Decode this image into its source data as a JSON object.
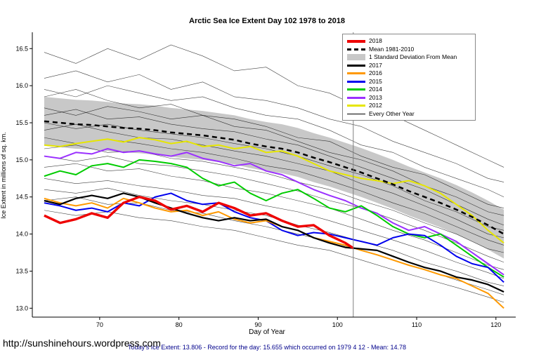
{
  "page": {
    "footer_url": "http://sunshinehours.wordpress.com",
    "caption": "Today's Ice Extent: 13.806  - Record for the day: 15.655 which occurred on 1979 4 12   - Mean: 14.78"
  },
  "legend": {
    "items": [
      {
        "label": "2018",
        "kind": "line",
        "color": "#EE0000",
        "weight": 4
      },
      {
        "label": "Mean 1981-2010",
        "kind": "dashed",
        "color": "#000000",
        "weight": 3
      },
      {
        "label": "1 Standard Deviation From Mean",
        "kind": "band",
        "color": "#C8C8C8"
      },
      {
        "label": "2017",
        "kind": "line",
        "color": "#000000",
        "weight": 3
      },
      {
        "label": "2016",
        "kind": "line",
        "color": "#FF9900",
        "weight": 3
      },
      {
        "label": "2015",
        "kind": "line",
        "color": "#0000EE",
        "weight": 3
      },
      {
        "label": "2014",
        "kind": "line",
        "color": "#00CC00",
        "weight": 3
      },
      {
        "label": "2013",
        "kind": "line",
        "color": "#9B30FF",
        "weight": 3
      },
      {
        "label": "2012",
        "kind": "line",
        "color": "#E6E600",
        "weight": 3
      },
      {
        "label": "Every Other Year",
        "kind": "line",
        "color": "#000000",
        "weight": 1
      }
    ]
  },
  "chart_data": {
    "type": "line",
    "title": "Arctic Sea Ice Extent Day 102 1978 to 2018",
    "xlabel": "Day of Year",
    "ylabel": "Ice Extent in millions of sq. km.",
    "xlim": [
      61.5,
      122.5
    ],
    "ylim": [
      12.88,
      16.72
    ],
    "x_ticks": [
      70,
      80,
      90,
      100,
      110,
      120
    ],
    "y_ticks": [
      13.0,
      13.5,
      14.0,
      14.5,
      15.0,
      15.5,
      16.0,
      16.5
    ],
    "ref_line_x": 102,
    "std_dev": 0.33,
    "band_color": "#C8C8C8",
    "x": [
      63,
      65,
      67,
      69,
      71,
      73,
      75,
      77,
      79,
      81,
      83,
      85,
      87,
      89,
      91,
      93,
      95,
      97,
      99,
      101,
      103,
      105,
      107,
      109,
      111,
      113,
      115,
      117,
      119,
      121
    ],
    "series": [
      {
        "name": "2012",
        "color": "#E6E600",
        "width": 2,
        "values": [
          15.2,
          15.18,
          15.22,
          15.25,
          15.28,
          15.24,
          15.3,
          15.27,
          15.22,
          15.25,
          15.18,
          15.2,
          15.15,
          15.18,
          15.1,
          15.12,
          15.05,
          14.95,
          14.85,
          14.8,
          14.75,
          14.72,
          14.68,
          14.72,
          14.65,
          14.55,
          14.4,
          14.25,
          14.05,
          13.88
        ]
      },
      {
        "name": "2013",
        "color": "#9B30FF",
        "width": 2,
        "values": [
          15.05,
          15.02,
          15.1,
          15.08,
          15.15,
          15.1,
          15.12,
          15.08,
          15.05,
          15.1,
          15.02,
          14.98,
          14.92,
          14.95,
          14.85,
          14.8,
          14.7,
          14.6,
          14.52,
          14.45,
          14.35,
          14.28,
          14.15,
          14.05,
          14.1,
          14.0,
          13.9,
          13.75,
          13.6,
          13.45
        ]
      },
      {
        "name": "2014",
        "color": "#00CC00",
        "width": 2,
        "values": [
          14.78,
          14.85,
          14.8,
          14.92,
          14.95,
          14.9,
          15.0,
          14.98,
          14.95,
          14.9,
          14.75,
          14.65,
          14.7,
          14.55,
          14.45,
          14.55,
          14.6,
          14.48,
          14.35,
          14.3,
          14.38,
          14.25,
          14.1,
          14.0,
          13.95,
          14.0,
          13.85,
          13.7,
          13.55,
          13.42
        ]
      },
      {
        "name": "2015",
        "color": "#0000EE",
        "width": 2,
        "values": [
          14.42,
          14.38,
          14.32,
          14.35,
          14.3,
          14.42,
          14.38,
          14.5,
          14.55,
          14.45,
          14.4,
          14.42,
          14.3,
          14.22,
          14.18,
          14.05,
          13.98,
          14.02,
          14.0,
          13.95,
          13.9,
          13.85,
          13.95,
          14.0,
          13.98,
          13.85,
          13.7,
          13.6,
          13.55,
          13.35
        ]
      },
      {
        "name": "2016",
        "color": "#FF9900",
        "width": 2,
        "values": [
          14.48,
          14.42,
          14.38,
          14.42,
          14.35,
          14.48,
          14.42,
          14.35,
          14.3,
          14.32,
          14.25,
          14.3,
          14.2,
          14.15,
          14.18,
          14.1,
          14.05,
          13.95,
          13.9,
          13.85,
          13.78,
          13.72,
          13.65,
          13.58,
          13.52,
          13.45,
          13.4,
          13.3,
          13.2,
          13.0
        ]
      },
      {
        "name": "2017",
        "color": "#000000",
        "width": 2.2,
        "values": [
          14.45,
          14.4,
          14.48,
          14.52,
          14.48,
          14.55,
          14.5,
          14.42,
          14.35,
          14.28,
          14.22,
          14.18,
          14.22,
          14.18,
          14.2,
          14.1,
          14.05,
          13.95,
          13.88,
          13.82,
          13.8,
          13.78,
          13.7,
          13.62,
          13.55,
          13.5,
          13.42,
          13.38,
          13.32,
          13.22
        ]
      },
      {
        "name": "Mean 1981-2010",
        "color": "#000000",
        "width": 2.5,
        "dash": "7 5",
        "is_mean": true,
        "values": [
          15.52,
          15.5,
          15.48,
          15.47,
          15.45,
          15.43,
          15.42,
          15.4,
          15.37,
          15.35,
          15.33,
          15.3,
          15.27,
          15.22,
          15.18,
          15.15,
          15.1,
          15.03,
          14.97,
          14.9,
          14.83,
          14.75,
          14.67,
          14.58,
          14.5,
          14.42,
          14.33,
          14.23,
          14.12,
          14.0
        ]
      },
      {
        "name": "2018",
        "color": "#EE0000",
        "width": 3.4,
        "x": [
          63,
          65,
          67,
          69,
          71,
          73,
          75,
          77,
          79,
          81,
          83,
          85,
          87,
          89,
          91,
          93,
          95,
          97,
          99,
          101,
          102
        ],
        "values": [
          14.25,
          14.15,
          14.2,
          14.28,
          14.22,
          14.42,
          14.5,
          14.45,
          14.33,
          14.38,
          14.3,
          14.42,
          14.35,
          14.25,
          14.28,
          14.18,
          14.1,
          14.12,
          13.98,
          13.88,
          13.81
        ]
      }
    ],
    "background_series": {
      "name": "Every Other Year",
      "color": "#000000",
      "x": [
        63,
        67,
        71,
        75,
        79,
        83,
        87,
        91,
        95,
        99,
        103,
        107,
        111,
        115,
        119,
        121
      ],
      "lines": [
        [
          16.45,
          16.3,
          16.5,
          16.35,
          16.55,
          16.4,
          16.2,
          16.25,
          16.0,
          15.9,
          15.7,
          15.6,
          15.4,
          15.2,
          15.0,
          14.9
        ],
        [
          16.1,
          16.2,
          16.05,
          16.15,
          15.95,
          16.05,
          15.85,
          15.8,
          15.7,
          15.55,
          15.45,
          15.25,
          15.1,
          14.95,
          14.75,
          14.7
        ],
        [
          15.95,
          15.85,
          16.0,
          15.9,
          15.8,
          15.85,
          15.7,
          15.6,
          15.55,
          15.4,
          15.2,
          15.1,
          14.9,
          14.75,
          14.6,
          14.5
        ],
        [
          15.85,
          15.95,
          15.8,
          15.7,
          15.75,
          15.6,
          15.55,
          15.45,
          15.3,
          15.25,
          15.05,
          14.9,
          14.8,
          14.6,
          14.4,
          14.35
        ],
        [
          15.7,
          15.6,
          15.72,
          15.65,
          15.55,
          15.6,
          15.45,
          15.4,
          15.25,
          15.1,
          15.0,
          14.85,
          14.65,
          14.5,
          14.3,
          14.25
        ],
        [
          15.6,
          15.68,
          15.55,
          15.58,
          15.48,
          15.42,
          15.38,
          15.28,
          15.2,
          15.05,
          14.9,
          14.75,
          14.6,
          14.4,
          14.2,
          14.12
        ],
        [
          15.5,
          15.42,
          15.48,
          15.4,
          15.35,
          15.3,
          15.22,
          15.15,
          15.05,
          14.92,
          14.8,
          14.65,
          14.45,
          14.3,
          14.1,
          14.05
        ],
        [
          15.4,
          15.48,
          15.38,
          15.3,
          15.28,
          15.2,
          15.12,
          15.05,
          14.95,
          14.85,
          14.68,
          14.55,
          14.38,
          14.2,
          14.0,
          13.95
        ],
        [
          15.3,
          15.22,
          15.28,
          15.22,
          15.15,
          15.1,
          15.02,
          14.92,
          14.85,
          14.72,
          14.58,
          14.42,
          14.28,
          14.1,
          13.92,
          13.85
        ],
        [
          15.15,
          15.2,
          15.1,
          15.12,
          15.02,
          14.98,
          14.9,
          14.82,
          14.7,
          14.6,
          14.45,
          14.32,
          14.15,
          14.0,
          13.8,
          13.75
        ],
        [
          15.05,
          14.98,
          15.05,
          14.95,
          14.92,
          14.85,
          14.78,
          14.68,
          14.58,
          14.45,
          14.35,
          14.2,
          14.05,
          13.88,
          13.7,
          13.62
        ],
        [
          14.9,
          14.95,
          14.85,
          14.88,
          14.78,
          14.72,
          14.62,
          14.55,
          14.45,
          14.35,
          14.2,
          14.05,
          13.92,
          13.75,
          13.58,
          13.52
        ],
        [
          14.75,
          14.68,
          14.72,
          14.65,
          14.6,
          14.52,
          14.48,
          14.38,
          14.3,
          14.18,
          14.05,
          13.92,
          13.78,
          13.62,
          13.48,
          13.4
        ],
        [
          14.6,
          14.55,
          14.62,
          14.52,
          14.45,
          14.4,
          14.32,
          14.25,
          14.12,
          14.02,
          13.9,
          13.78,
          13.62,
          13.5,
          13.35,
          13.3
        ],
        [
          14.45,
          14.5,
          14.4,
          14.42,
          14.32,
          14.28,
          14.18,
          14.1,
          14.0,
          13.9,
          13.78,
          13.65,
          13.52,
          13.38,
          13.25,
          13.18
        ],
        [
          14.32,
          14.25,
          14.3,
          14.22,
          14.18,
          14.1,
          14.05,
          13.95,
          13.85,
          13.78,
          13.65,
          13.52,
          13.4,
          13.28,
          13.15,
          13.08
        ]
      ]
    }
  }
}
